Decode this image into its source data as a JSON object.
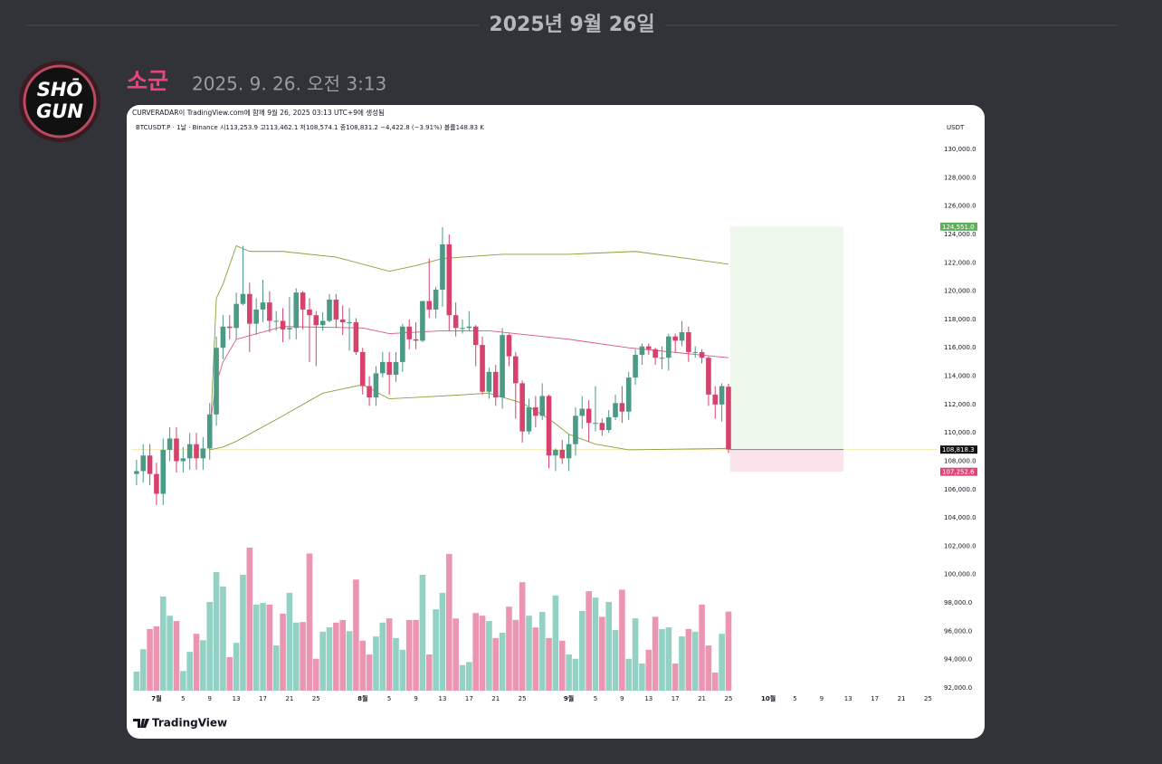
{
  "header": {
    "date": "2025년 9월 26일"
  },
  "message": {
    "author": "소군",
    "timestamp": "2025. 9. 26. 오전 3:13",
    "avatar": [
      "SHŌ",
      "GUN"
    ]
  },
  "chart_data": {
    "type": "candlestick",
    "caption": "CURVERADAR이 TradingView.com에 함께 9월 26, 2025 03:13 UTC+9에 생성됨",
    "legend": "BTCUSDT.P · 1날 · Binance  시113,253.9  고113,462.1  저108,574.1  종108,831.2  −4,422.8 (−3.91%)  볼륨148.83 K",
    "currency": "USDT",
    "brand": "TradingView",
    "xlim": [
      -0.8,
      120.3
    ],
    "ylim": [
      91680,
      130960
    ],
    "yticks": [
      {
        "value": 92000,
        "label": "92,000.0"
      },
      {
        "value": 94000,
        "label": "94,000.0"
      },
      {
        "value": 96000,
        "label": "96,000.0"
      },
      {
        "value": 98000,
        "label": "98,000.0"
      },
      {
        "value": 100000,
        "label": "100,000.0"
      },
      {
        "value": 102000,
        "label": "102,000.0"
      },
      {
        "value": 104000,
        "label": "104,000.0"
      },
      {
        "value": 106000,
        "label": "106,000.0"
      },
      {
        "value": 108000,
        "label": "108,000.0"
      },
      {
        "value": 110000,
        "label": "110,000.0"
      },
      {
        "value": 112000,
        "label": "112,000.0"
      },
      {
        "value": 114000,
        "label": "114,000.0"
      },
      {
        "value": 116000,
        "label": "116,000.0"
      },
      {
        "value": 118000,
        "label": "118,000.0"
      },
      {
        "value": 120000,
        "label": "120,000.0"
      },
      {
        "value": 122000,
        "label": "122,000.0"
      },
      {
        "value": 124000,
        "label": "124,000.0"
      },
      {
        "value": 126000,
        "label": "126,000.0"
      },
      {
        "value": 128000,
        "label": "128,000.0"
      },
      {
        "value": 130000,
        "label": "130,000.0"
      }
    ],
    "xticks": [
      {
        "value": 3,
        "label": "7월"
      },
      {
        "value": 7,
        "label": "5"
      },
      {
        "value": 11,
        "label": "9"
      },
      {
        "value": 15,
        "label": "13"
      },
      {
        "value": 19,
        "label": "17"
      },
      {
        "value": 23,
        "label": "21"
      },
      {
        "value": 27,
        "label": "25"
      },
      {
        "value": 34,
        "label": "8월"
      },
      {
        "value": 38,
        "label": "5"
      },
      {
        "value": 42,
        "label": "9"
      },
      {
        "value": 46,
        "label": "13"
      },
      {
        "value": 50,
        "label": "17"
      },
      {
        "value": 54,
        "label": "21"
      },
      {
        "value": 58,
        "label": "25"
      },
      {
        "value": 65,
        "label": "9월"
      },
      {
        "value": 69,
        "label": "5"
      },
      {
        "value": 73,
        "label": "9"
      },
      {
        "value": 77,
        "label": "13"
      },
      {
        "value": 81,
        "label": "17"
      },
      {
        "value": 85,
        "label": "21"
      },
      {
        "value": 89,
        "label": "25"
      },
      {
        "value": 95,
        "label": "10월"
      },
      {
        "value": 99,
        "label": "5"
      },
      {
        "value": 103,
        "label": "9"
      },
      {
        "value": 107,
        "label": "13"
      },
      {
        "value": 111,
        "label": "17"
      },
      {
        "value": 115,
        "label": "21"
      },
      {
        "value": 119,
        "label": "25"
      }
    ],
    "up_color": "#4a9a85",
    "down_color": "#d6426c",
    "volume_up_color": "#92d1c4",
    "volume_down_color": "#eb95b3",
    "open": [
      107100,
      107300,
      108400,
      107100,
      105700,
      108800,
      109600,
      108000,
      108200,
      109200,
      108200,
      108900,
      111300,
      116000,
      117500,
      117400,
      119100,
      119800,
      117700,
      118700,
      119200,
      117900,
      117900,
      117300,
      117400,
      119900,
      118700,
      118300,
      117600,
      117900,
      119400,
      118000,
      117800,
      117800,
      115700,
      113300,
      112500,
      114200,
      115000,
      114100,
      115000,
      117500,
      116600,
      116500,
      119300,
      118700,
      120100,
      123300,
      118300,
      117400,
      117400,
      117500,
      116200,
      112900,
      114300,
      112500,
      116900,
      115400,
      113500,
      110100,
      111800,
      111200,
      112600,
      108400,
      108800,
      108200,
      109200,
      111200,
      111700,
      110700,
      110700,
      110200,
      111100,
      112100,
      111500,
      113900,
      115500,
      116100,
      115900,
      115300,
      115300,
      116800,
      116500,
      117100,
      115700,
      115700,
      115300,
      112700,
      112000,
      113253.9
    ],
    "high": [
      108100,
      109200,
      109200,
      107900,
      109600,
      110400,
      110400,
      109000,
      110000,
      110000,
      109700,
      112100,
      116800,
      118300,
      118300,
      119900,
      123200,
      120600,
      119500,
      120800,
      120000,
      118600,
      118800,
      119600,
      120200,
      120000,
      119500,
      118600,
      118500,
      119800,
      119800,
      119000,
      118800,
      118100,
      116000,
      114000,
      114700,
      115700,
      115700,
      115700,
      117700,
      118000,
      117800,
      119300,
      122300,
      120300,
      124500,
      124000,
      119200,
      118000,
      118600,
      117600,
      116800,
      114600,
      114800,
      117400,
      117000,
      115700,
      113700,
      112400,
      112600,
      113500,
      112700,
      108900,
      109500,
      109900,
      111800,
      112600,
      112300,
      113300,
      111000,
      111600,
      112700,
      113300,
      114300,
      115900,
      116300,
      116300,
      116000,
      116100,
      117000,
      117000,
      117900,
      117500,
      116100,
      115900,
      115400,
      113300,
      113500,
      113462.1
    ],
    "low": [
      106300,
      106500,
      106300,
      104900,
      104900,
      108000,
      107200,
      107200,
      107400,
      107400,
      107400,
      108100,
      110500,
      115200,
      116600,
      116600,
      119000,
      115700,
      116900,
      117800,
      117100,
      117200,
      116400,
      116600,
      116600,
      117300,
      115000,
      114700,
      117200,
      117800,
      117400,
      116900,
      115800,
      115500,
      112700,
      111900,
      111900,
      113900,
      112700,
      113600,
      114300,
      115900,
      115900,
      116400,
      118100,
      118100,
      118900,
      117200,
      116800,
      117000,
      117200,
      114700,
      112700,
      112400,
      111900,
      111700,
      114700,
      111000,
      109300,
      109900,
      110400,
      110900,
      107500,
      107300,
      107800,
      107300,
      108400,
      110300,
      109400,
      110100,
      109800,
      110000,
      110900,
      110700,
      110900,
      113400,
      114800,
      115500,
      114800,
      114500,
      114400,
      115700,
      116100,
      115000,
      115300,
      114900,
      111900,
      111000,
      110800,
      108574.1
    ],
    "close": [
      107300,
      108400,
      107100,
      105700,
      108800,
      109600,
      108000,
      108200,
      109200,
      108200,
      108900,
      111300,
      116000,
      117500,
      117400,
      119100,
      119800,
      117700,
      118700,
      119200,
      117900,
      117900,
      117300,
      117400,
      119900,
      118700,
      118300,
      117600,
      117900,
      119400,
      118000,
      117800,
      117800,
      115700,
      113300,
      112500,
      114200,
      115000,
      114100,
      115000,
      117500,
      116600,
      116500,
      119300,
      118700,
      120100,
      123300,
      118300,
      117400,
      117400,
      117500,
      116200,
      112900,
      114300,
      112500,
      116900,
      115400,
      113500,
      110100,
      111800,
      111200,
      112600,
      108400,
      108800,
      108200,
      109200,
      111200,
      111700,
      110700,
      110700,
      110200,
      111100,
      112100,
      111500,
      113900,
      115500,
      116100,
      115900,
      115300,
      115300,
      116800,
      116500,
      117100,
      115700,
      115700,
      115300,
      112700,
      112000,
      113300,
      108831.2
    ],
    "volume": [
      36,
      78,
      116,
      121,
      177,
      141,
      131,
      37,
      73,
      107,
      95,
      167,
      223,
      196,
      63,
      90,
      218,
      269,
      162,
      165,
      162,
      85,
      145,
      184,
      128,
      129,
      258,
      60,
      111,
      119,
      128,
      133,
      112,
      209,
      94,
      68,
      102,
      128,
      136,
      99,
      77,
      133,
      133,
      218,
      68,
      153,
      184,
      257,
      136,
      48,
      54,
      146,
      141,
      131,
      99,
      109,
      158,
      133,
      204,
      141,
      119,
      148,
      99,
      179,
      94,
      68,
      60,
      150,
      187,
      175,
      139,
      167,
      114,
      190,
      60,
      136,
      51,
      77,
      139,
      116,
      119,
      51,
      102,
      116,
      111,
      162,
      85,
      34,
      107,
      148.83
    ],
    "bands": {
      "upper": {
        "color": "#8f9a3c",
        "x": [
          11,
          12,
          13,
          15,
          17,
          22,
          30,
          38,
          42,
          46,
          55,
          65,
          75,
          89
        ],
        "values": [
          109000,
          119500,
          120500,
          123200,
          122800,
          122800,
          122400,
          121400,
          121800,
          122300,
          122600,
          122600,
          122800,
          121900
        ]
      },
      "middle": {
        "color": "#d8577a",
        "x": [
          11,
          12,
          13,
          15,
          22,
          34,
          38,
          46,
          53,
          65,
          74,
          89
        ],
        "values": [
          110500,
          113500,
          115000,
          116600,
          117500,
          117400,
          117000,
          117200,
          117200,
          116600,
          116000,
          115300
        ]
      },
      "lower": {
        "color": "#8f9a3c",
        "x": [
          11,
          13,
          15,
          22,
          28,
          34,
          38,
          46,
          53,
          58,
          62,
          65,
          69,
          74,
          89
        ],
        "values": [
          108800,
          109000,
          109400,
          111200,
          112800,
          113400,
          112400,
          112600,
          112800,
          112100,
          111000,
          109900,
          109200,
          108800,
          108900
        ]
      }
    },
    "position": {
      "start": 89.25,
      "end": 106.3,
      "target": {
        "value": 124551.0,
        "label": "124,551.0"
      },
      "entry": {
        "value": 108818.3,
        "label": "108,818.3"
      },
      "stop": {
        "value": 107252.6,
        "label": "107,252.6"
      },
      "target_color": "#eef7ec",
      "stop_color": "#fbe4ec",
      "target_label_color": "#5fae5b",
      "entry_label_color": "#111111",
      "stop_label_color": "#e0467a"
    }
  }
}
